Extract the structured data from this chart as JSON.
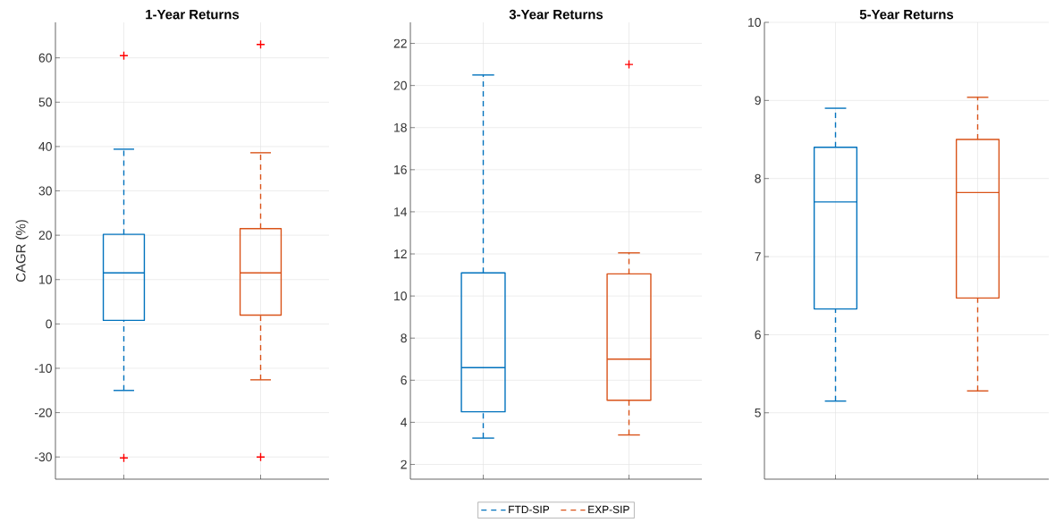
{
  "chart_data": [
    {
      "type": "box",
      "title": "1-Year Returns",
      "ylabel": "CAGR (%)",
      "categories": [
        null,
        null
      ],
      "ylim": [
        -35,
        68
      ],
      "yticks": [
        -30,
        -20,
        -10,
        0,
        10,
        20,
        30,
        40,
        50,
        60
      ],
      "grid": true,
      "marker": "cross",
      "line_style": "dashed",
      "series": [
        {
          "color": "#0072bd",
          "boxes": [
            {
              "low": -15,
              "q1": 0.8,
              "median": 11.5,
              "q3": 20.2,
              "high": 39.4,
              "outliers": [
                60.5,
                -30.2
              ]
            },
            null
          ]
        },
        {
          "color": "#d95319",
          "boxes": [
            null,
            {
              "low": -12.6,
              "q1": 2,
              "median": 11.5,
              "q3": 21.5,
              "high": 38.6,
              "outliers": [
                63,
                -30
              ]
            }
          ]
        }
      ]
    },
    {
      "type": "box",
      "title": "3-Year Returns",
      "categories": [
        null,
        null
      ],
      "ylim": [
        1.3,
        23
      ],
      "yticks": [
        2,
        4,
        6,
        8,
        10,
        12,
        14,
        16,
        18,
        20,
        22
      ],
      "grid": true,
      "marker": "cross",
      "line_style": "dashed",
      "legend": "bottom",
      "series": [
        {
          "name": "FTD-SIP",
          "color": "#0072bd",
          "boxes": [
            {
              "low": 3.25,
              "q1": 4.5,
              "median": 6.6,
              "q3": 11.1,
              "high": 20.5
            },
            null
          ]
        },
        {
          "name": "EXP-SIP",
          "color": "#d95319",
          "boxes": [
            null,
            {
              "low": 3.4,
              "q1": 5.05,
              "median": 7.0,
              "q3": 11.05,
              "high": 12.05,
              "outliers": [
                21
              ]
            }
          ]
        }
      ]
    },
    {
      "type": "box",
      "title": "5-Year Returns",
      "categories": [
        null,
        null
      ],
      "ylim": [
        4.15,
        10
      ],
      "yticks": [
        5,
        6,
        7,
        8,
        9,
        10
      ],
      "grid": true,
      "line_style": "dashed",
      "series": [
        {
          "color": "#0072bd",
          "boxes": [
            {
              "low": 5.15,
              "q1": 6.33,
              "median": 7.7,
              "q3": 8.4,
              "high": 8.9
            },
            null
          ]
        },
        {
          "color": "#d95319",
          "boxes": [
            null,
            {
              "low": 5.28,
              "q1": 6.47,
              "median": 7.82,
              "q3": 8.5,
              "high": 9.04
            }
          ]
        }
      ]
    }
  ]
}
